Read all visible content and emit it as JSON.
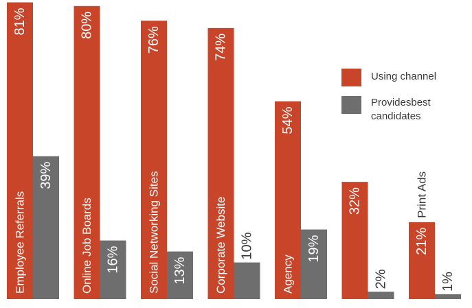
{
  "chart_data": {
    "type": "bar",
    "title": "",
    "xlabel": "",
    "ylabel": "",
    "ylim": [
      0,
      81
    ],
    "grid": false,
    "legend_position": "right",
    "categories": [
      "Employee Referrals",
      "Online Job Boards",
      "Social Networking Sites",
      "Corporate Website",
      "Agency",
      "",
      "Print Ads"
    ],
    "series": [
      {
        "name": "Using channel",
        "color": "#c9452a",
        "values": [
          81,
          80,
          76,
          74,
          54,
          32,
          21
        ],
        "labels": [
          "81%",
          "80%",
          "76%",
          "74%",
          "54%",
          "32%",
          "21%"
        ]
      },
      {
        "name": "Provides best candidates",
        "color": "#6e6e6e",
        "values": [
          39,
          16,
          13,
          10,
          19,
          2,
          1
        ],
        "labels": [
          "39%",
          "16%",
          "13%",
          "10%",
          "19%",
          "2%",
          "1%"
        ]
      }
    ]
  },
  "legend": {
    "items": [
      {
        "label_lines": [
          "Using channel"
        ],
        "color": "#c9452a"
      },
      {
        "label_lines": [
          "Providesbest",
          "candidates"
        ],
        "color": "#6e6e6e"
      }
    ]
  }
}
